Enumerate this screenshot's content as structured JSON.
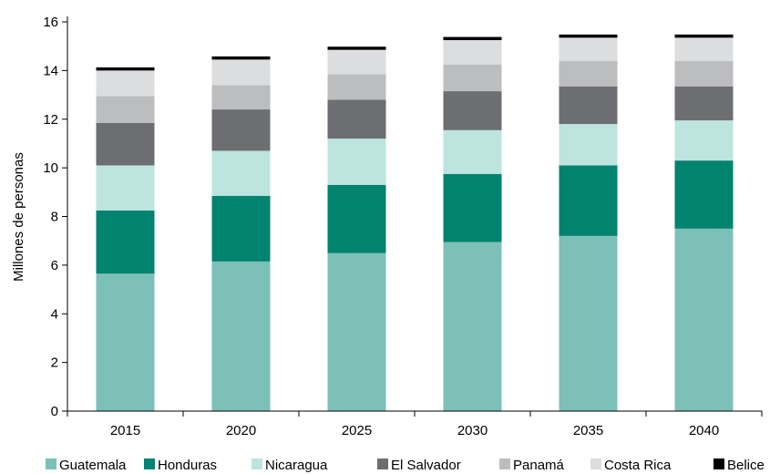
{
  "chart_data": {
    "type": "bar",
    "stacked": true,
    "title": "",
    "xlabel": "",
    "ylabel": "Millones de personas",
    "ylim": [
      0,
      16
    ],
    "yticks": [
      0,
      2,
      4,
      6,
      8,
      10,
      12,
      14,
      16
    ],
    "grid": false,
    "legend_position": "bottom",
    "categories": [
      "2015",
      "2020",
      "2025",
      "2030",
      "2035",
      "2040"
    ],
    "series": [
      {
        "name": "Guatemala",
        "color": "#7dc0b7",
        "values": [
          5.65,
          6.15,
          6.5,
          6.95,
          7.2,
          7.5
        ]
      },
      {
        "name": "Honduras",
        "color": "#00836f",
        "values": [
          2.6,
          2.7,
          2.8,
          2.8,
          2.9,
          2.8
        ]
      },
      {
        "name": "Nicaragua",
        "color": "#bde4df",
        "values": [
          1.85,
          1.85,
          1.9,
          1.8,
          1.7,
          1.65
        ]
      },
      {
        "name": "El Salvador",
        "color": "#6d6e71",
        "values": [
          1.75,
          1.7,
          1.6,
          1.6,
          1.55,
          1.4
        ]
      },
      {
        "name": "Panamá",
        "color": "#bcbdbf",
        "values": [
          1.1,
          1.0,
          1.05,
          1.1,
          1.05,
          1.05
        ]
      },
      {
        "name": "Costa Rica",
        "color": "#dcdddf",
        "values": [
          1.05,
          1.05,
          1.0,
          1.0,
          0.95,
          0.95
        ]
      },
      {
        "name": "Belice",
        "color": "#000000",
        "values": [
          0.13,
          0.13,
          0.13,
          0.13,
          0.13,
          0.13
        ]
      }
    ]
  }
}
